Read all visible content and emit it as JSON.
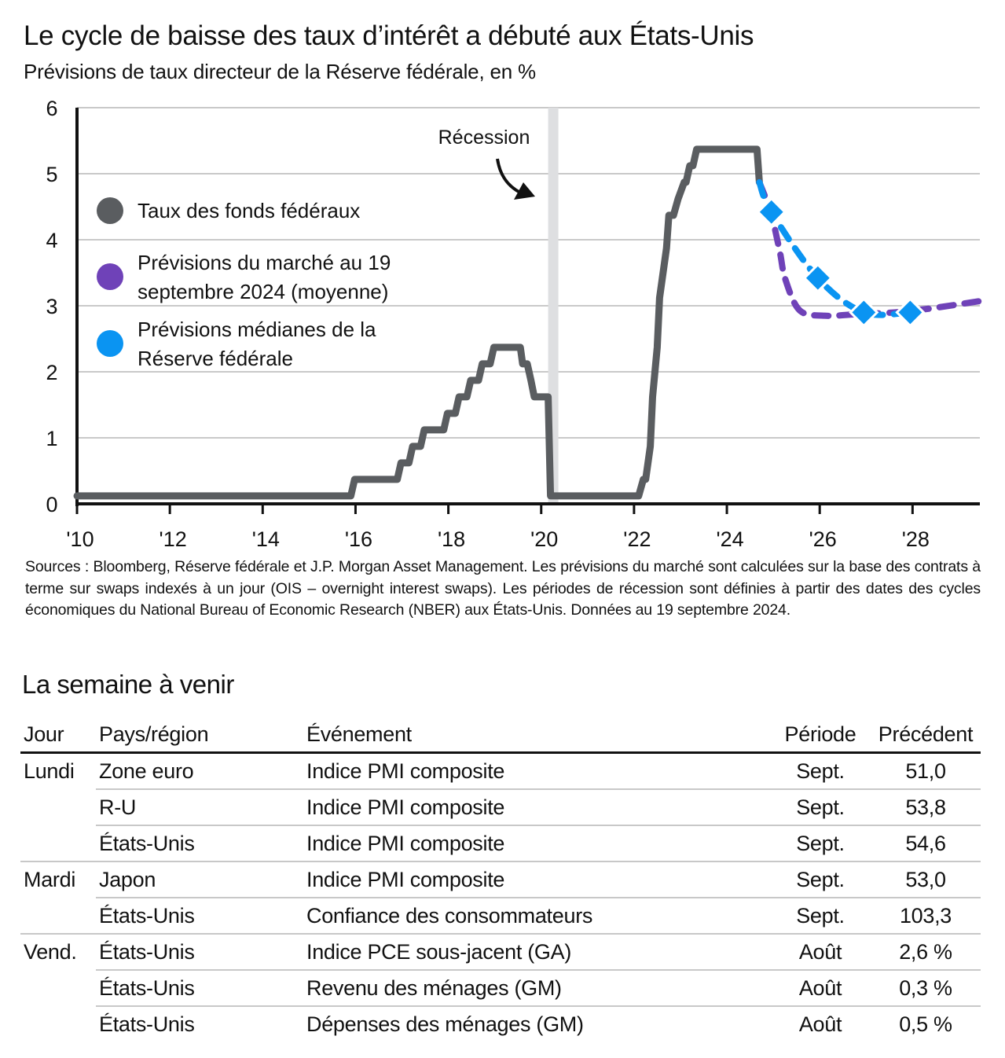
{
  "header": {
    "title": "Le cycle de baisse des taux d’intérêt a débuté aux États-Unis",
    "subtitle": "Prévisions de taux directeur de la Réserve fédérale, en %"
  },
  "chart_data": {
    "type": "line",
    "title": "Le cycle de baisse des taux d’intérêt a débuté aux États-Unis",
    "subtitle": "Prévisions de taux directeur de la Réserve fédérale, en %",
    "xlabel": "",
    "ylabel": "%",
    "xlim": [
      2010,
      2029.45
    ],
    "ylim": [
      0,
      6
    ],
    "y_ticks": [
      "0",
      "1",
      "2",
      "3",
      "4",
      "5",
      "6"
    ],
    "x_ticks": [
      {
        "value": 2010,
        "label": "'10"
      },
      {
        "value": 2012,
        "label": "'12"
      },
      {
        "value": 2014,
        "label": "'14"
      },
      {
        "value": 2016,
        "label": "'16"
      },
      {
        "value": 2018,
        "label": "'18"
      },
      {
        "value": 2020,
        "label": "'20"
      },
      {
        "value": 2022,
        "label": "'22"
      },
      {
        "value": 2024,
        "label": "'24"
      },
      {
        "value": 2026,
        "label": "'26"
      },
      {
        "value": 2028,
        "label": "'28"
      }
    ],
    "grid": true,
    "legend_position": "left",
    "annotation": {
      "label": "Récession",
      "recession_start": 2020.15,
      "recession_end": 2020.35
    },
    "series": [
      {
        "name": "Taux des fonds fédéraux",
        "color": "#5a5d60",
        "style": "solid",
        "x": [
          2010.0,
          2015.9,
          2015.98,
          2016.9,
          2016.98,
          2017.15,
          2017.23,
          2017.4,
          2017.48,
          2017.9,
          2017.98,
          2018.15,
          2018.23,
          2018.4,
          2018.48,
          2018.65,
          2018.73,
          2018.9,
          2018.98,
          2019.55,
          2019.6,
          2019.7,
          2019.78,
          2019.85,
          2020.15,
          2020.2,
          2022.1,
          2022.2,
          2022.25,
          2022.35,
          2022.4,
          2022.5,
          2022.55,
          2022.7,
          2022.75,
          2022.85,
          2022.95,
          2023.08,
          2023.12,
          2023.2,
          2023.27,
          2023.35,
          2023.55,
          2024.65,
          2024.7
        ],
        "y": [
          0.12,
          0.12,
          0.37,
          0.37,
          0.62,
          0.62,
          0.87,
          0.87,
          1.12,
          1.12,
          1.37,
          1.37,
          1.62,
          1.62,
          1.87,
          1.87,
          2.12,
          2.12,
          2.37,
          2.37,
          2.12,
          2.12,
          1.87,
          1.62,
          1.62,
          0.12,
          0.12,
          0.37,
          0.37,
          0.87,
          1.62,
          2.37,
          3.12,
          3.87,
          4.37,
          4.37,
          4.62,
          4.87,
          4.87,
          5.12,
          5.12,
          5.37,
          5.37,
          5.37,
          4.87
        ]
      },
      {
        "name": "Prévisions du marché au 19 septembre 2024 (moyenne)",
        "color": "#6f42b8",
        "style": "dashed",
        "x": [
          2024.7,
          2024.95,
          2025.14,
          2025.26,
          2025.57,
          2026.1,
          2026.77,
          2027.95,
          2029.45
        ],
        "y": [
          4.87,
          4.4,
          3.82,
          3.4,
          2.93,
          2.85,
          2.87,
          2.92,
          3.07
        ]
      },
      {
        "name": "Prévisions médianes de la Réserve fédérale",
        "color": "#0a94f2",
        "style": "dashed-markers",
        "x": [
          2024.7,
          2024.96,
          2025.96,
          2026.95,
          2027.95
        ],
        "y": [
          4.87,
          4.42,
          3.42,
          2.9,
          2.9
        ],
        "markers": [
          {
            "x": 2024.96,
            "y": 4.42
          },
          {
            "x": 2025.96,
            "y": 3.42
          },
          {
            "x": 2026.95,
            "y": 2.9
          },
          {
            "x": 2027.95,
            "y": 2.9
          }
        ]
      }
    ],
    "legend": [
      {
        "label_lines": [
          "Taux des fonds fédéraux"
        ],
        "color": "#5a5d60"
      },
      {
        "label_lines": [
          "Prévisions du marché au 19",
          "septembre 2024 (moyenne)"
        ],
        "color": "#6f42b8"
      },
      {
        "label_lines": [
          "Prévisions médianes de la",
          "Réserve fédérale"
        ],
        "color": "#0a94f2"
      }
    ]
  },
  "sources": "Sources : Bloomberg, Réserve fédérale et J.P. Morgan Asset Management. Les prévisions du marché sont calculées sur la base des contrats à terme sur swaps indexés à un jour (OIS – overnight interest swaps). Les périodes de récession sont définies à partir des dates des cycles économiques du National Bureau of Economic Research (NBER) aux États-Unis. Données au 19 septembre 2024.",
  "week": {
    "title": "La semaine à venir",
    "columns": [
      "Jour",
      "Pays/région",
      "Événement",
      "Période",
      "Précédent"
    ],
    "rows": [
      {
        "day": "Lundi",
        "country": "Zone euro",
        "event": "Indice PMI composite",
        "period": "Sept.",
        "previous": "51,0"
      },
      {
        "day": "",
        "country": "R-U",
        "event": "Indice PMI composite",
        "period": "Sept.",
        "previous": "53,8"
      },
      {
        "day": "",
        "country": "États-Unis",
        "event": "Indice PMI composite",
        "period": "Sept.",
        "previous": "54,6"
      },
      {
        "day": "Mardi",
        "country": "Japon",
        "event": "Indice PMI composite",
        "period": "Sept.",
        "previous": "53,0"
      },
      {
        "day": "",
        "country": "États-Unis",
        "event": "Confiance des consommateurs",
        "period": "Sept.",
        "previous": "103,3"
      },
      {
        "day": "Vend.",
        "country": "États-Unis",
        "event": "Indice PCE sous-jacent (GA)",
        "period": "Août",
        "previous": "2,6 %"
      },
      {
        "day": "",
        "country": "États-Unis",
        "event": "Revenu des ménages (GM)",
        "period": "Août",
        "previous": "0,3 %"
      },
      {
        "day": "",
        "country": "États-Unis",
        "event": "Dépenses des ménages (GM)",
        "period": "Août",
        "previous": "0,5 %"
      }
    ]
  }
}
